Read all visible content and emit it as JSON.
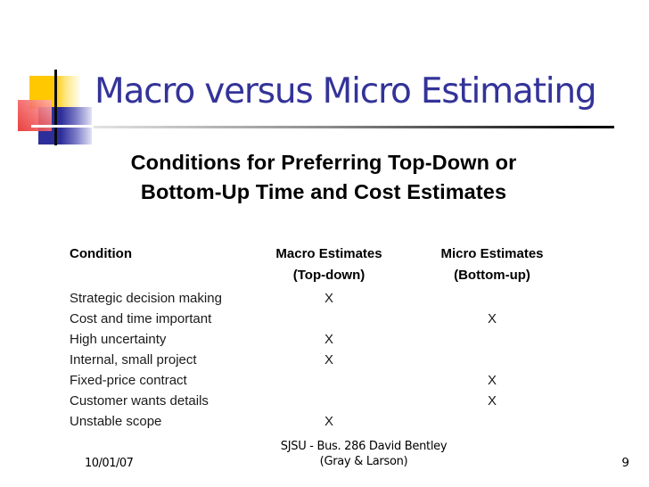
{
  "slide": {
    "title": "Macro versus Micro Estimating",
    "subtitle_line1": "Conditions for Preferring Top-Down or",
    "subtitle_line2": "Bottom-Up Time and Cost Estimates",
    "table": {
      "col1_header": "Condition",
      "col2_header": "Macro Estimates",
      "col2_subheader": "(Top-down)",
      "col3_header": "Micro Estimates",
      "col3_subheader": "(Bottom-up)",
      "rows": [
        {
          "condition": "Strategic decision making",
          "macro": "X",
          "micro": ""
        },
        {
          "condition": "Cost and time important",
          "macro": "",
          "micro": "X"
        },
        {
          "condition": "High uncertainty",
          "macro": "X",
          "micro": ""
        },
        {
          "condition": "Internal, small project",
          "macro": "X",
          "micro": ""
        },
        {
          "condition": "Fixed-price contract",
          "macro": "",
          "micro": "X"
        },
        {
          "condition": "Customer wants details",
          "macro": "",
          "micro": "X"
        },
        {
          "condition": "Unstable scope",
          "macro": "X",
          "micro": ""
        }
      ]
    },
    "footer": {
      "date": "10/01/07",
      "center_line1": "SJSU - Bus. 286 David Bentley",
      "center_line2": "(Gray &amp; Larson)",
      "center_line2_text": "(Gray & Larson)",
      "page_number": "9"
    },
    "colors": {
      "title_text": "#333399",
      "accent_yellow": "#FFC800",
      "accent_red": "#E52C2C",
      "accent_blue": "#2E2E9A",
      "body_text": "#1a1a1a"
    }
  }
}
